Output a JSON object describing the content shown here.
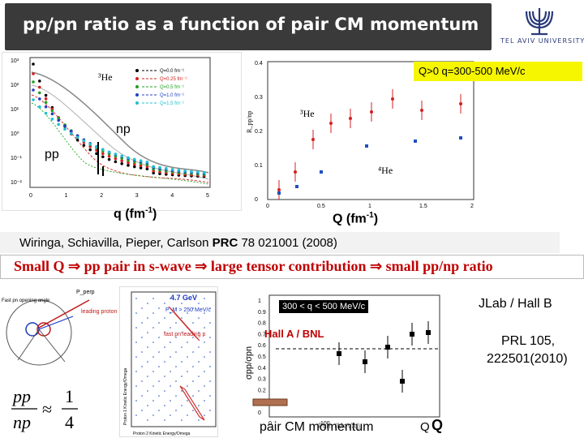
{
  "slide": {
    "title": "pp/pn ratio as a function of pair CM momentum",
    "logo_text": "TEL AVIV UNIVERSITY"
  },
  "left_plot": {
    "legend": [
      "Q=0.0 fm⁻¹",
      "Q=0.25 fm⁻¹",
      "Q=0.5 fm⁻¹",
      "Q=1.0 fm⁻¹",
      "Q=1.5 fm⁻¹"
    ],
    "nucleus": "³He",
    "label_np": "np",
    "label_pp": "pp",
    "xlabel_main": "q (fm",
    "xlabel_sup": "-1",
    "xlabel_end": ")",
    "xtick_labels": [
      "0",
      "1",
      "2",
      "3",
      "4",
      "5"
    ],
    "ytick_labels": [
      "10³",
      "10²",
      "10¹",
      "10⁰",
      "10⁻¹",
      "10⁻²"
    ]
  },
  "right_plot": {
    "condition": "Q>0   q=300-500 MeV/c",
    "label_3he": "³He",
    "label_4he": "⁴He",
    "xlabel_main": "Q (fm",
    "xlabel_sup": "-1",
    "xlabel_end": ")",
    "xtick_labels": [
      "0",
      "0.5",
      "1",
      "1.5",
      "2"
    ],
    "ytick_labels": [
      "0.4",
      "0.3",
      "0.2",
      "0.1",
      "0"
    ]
  },
  "reference": {
    "authors": "Wiringa, Schiavilla, Pieper, Carlson ",
    "journal": "PRC",
    "citation": "  78 021001 (2008)"
  },
  "summary": {
    "text": "Small Q ⇒ pp pair in s-wave ⇒ large  tensor contribution ⇒ small pp/np ratio"
  },
  "diagram": {
    "pperp": "P_perp",
    "leading_proton": "leading proton",
    "fast_pn": "Fast pn opening angle"
  },
  "dalitz": {
    "energy": "4.7 GeV",
    "pm": "P_M > 250 MeV/c",
    "fast_pn": "fast pn leading p",
    "xlabel": "Proton 2 Kinetic Energy/Omega",
    "ylabel": "Proton 1 Kinetic Energy/Omega"
  },
  "formula": {
    "lhs_num": "pp",
    "lhs_den": "np",
    "approx": "≈",
    "rhs_num": "1",
    "rhs_den": "4"
  },
  "bottom_plot": {
    "range_label": "300 < q < 500 MeV/c",
    "hall_a": "Hall A / BNL",
    "ylabel": "σpp/σpn",
    "xlabel": "pair CM momentum",
    "axis_overlay": "Pcm (MeV/c)",
    "ytick_labels": [
      "1",
      "0.9",
      "0.8",
      "0.7",
      "0.6",
      "0.5",
      "0.4",
      "0.3",
      "0.2",
      "0.1",
      "0"
    ],
    "xtick_labels": [
      "0",
      "100"
    ]
  },
  "right_text": {
    "jlab": "JLab /  Hall B",
    "prl_line1": "PRL 105,",
    "prl_line2": "222501(2010)",
    "qq_1": "Q",
    "qq_2": "Q"
  },
  "colors": {
    "title_bg": "#3a3a3a",
    "summary_text": "#c00000",
    "condition_bg": "#f6f600",
    "pp_point": "#d42020",
    "np_point": "#2050c0"
  }
}
